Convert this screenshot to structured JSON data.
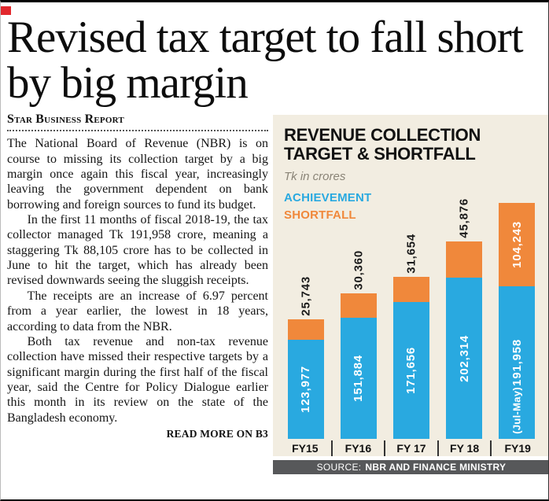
{
  "article": {
    "headline": "Revised tax target to fall short by big margin",
    "byline": "Star Business Report",
    "paragraphs": [
      "The National Board of Revenue (NBR) is on course to missing its collection target by a big margin once again this fiscal year, increasingly leaving the government dependent on bank borrowing and foreign sources to fund its budget.",
      "In the first 11 months of fiscal 2018-19, the tax collector managed Tk 191,958 crore, meaning a staggering Tk 88,105 crore has to be collected in June to hit the target, which has already been revised downwards seeing the sluggish receipts.",
      "The receipts are an increase of 6.97 percent from a year earlier, the lowest in 18 years, according to data from the NBR.",
      "Both tax revenue and non-tax revenue collection have missed their respective targets by a significant margin during the first half of the fiscal year, said the Centre for Policy Dialogue earlier this month in its review on the state of the Bangladesh economy."
    ],
    "read_more": "READ MORE ON B3"
  },
  "chart": {
    "title_line1": "REVENUE COLLECTION",
    "title_line2": "TARGET & SHORTFALL",
    "subtitle": "Tk in crores",
    "legend": [
      {
        "label": "ACHIEVEMENT",
        "color": "#29a9e0"
      },
      {
        "label": "SHORTFALL",
        "color": "#f0883b"
      }
    ],
    "source_label": "SOURCE:",
    "source_value": "NBR AND FINANCE MINISTRY"
  },
  "chart_data": {
    "type": "bar",
    "stacked": true,
    "title": "REVENUE COLLECTION TARGET & SHORTFALL",
    "unit": "Tk in crores",
    "categories": [
      "FY15",
      "FY16",
      "FY 17",
      "FY 18",
      "FY19"
    ],
    "series": [
      {
        "name": "ACHIEVEMENT",
        "color": "#29a9e0",
        "values": [
          123977,
          151884,
          171656,
          202314,
          191958
        ],
        "labels": [
          "123,977",
          "151,884",
          "171,656",
          "202,314",
          "191,958"
        ]
      },
      {
        "name": "SHORTFALL",
        "color": "#f0883b",
        "values": [
          25743,
          30360,
          31654,
          45876,
          104243
        ],
        "labels": [
          "25,743",
          "30,360",
          "31,654",
          "45,876",
          "104,243"
        ]
      }
    ],
    "bar_note": "(Jul-May)",
    "bar_note_index": 4,
    "ylim": [
      0,
      300000
    ],
    "grid": false,
    "legend_position": "top-left"
  },
  "colors": {
    "achievement": "#29a9e0",
    "shortfall": "#f0883b",
    "chart_background": "#f2ede1",
    "source_bar_background": "#57585a",
    "corner_accent": "#e2282d"
  }
}
